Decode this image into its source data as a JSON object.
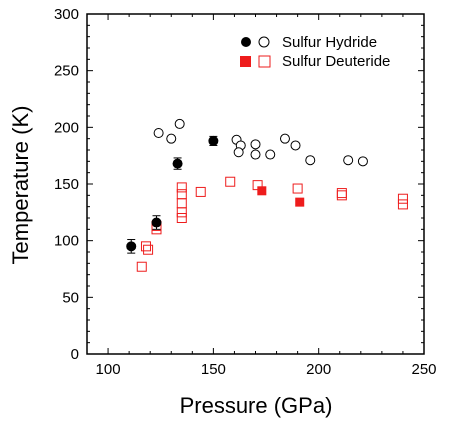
{
  "chart_data": {
    "type": "scatter",
    "xlabel": "Pressure (GPa)",
    "ylabel": "Temperature (K)",
    "xlim": [
      90,
      250
    ],
    "ylim": [
      0,
      300
    ],
    "x_ticks": [
      100,
      150,
      200,
      250
    ],
    "y_ticks": [
      0,
      50,
      100,
      150,
      200,
      250,
      300
    ],
    "x_tick_labels": [
      "100",
      "150",
      "200",
      "250"
    ],
    "y_tick_labels": [
      "0",
      "50",
      "100",
      "150",
      "200",
      "250",
      "300"
    ],
    "grid": false,
    "legend_position": "top-right",
    "series": [
      {
        "name": "Sulfur Hydride",
        "color": "#000000",
        "points_filled": [
          {
            "x": 111,
            "y": 95,
            "err": 6
          },
          {
            "x": 123,
            "y": 116,
            "err": 6
          },
          {
            "x": 133,
            "y": 168,
            "err": 5
          },
          {
            "x": 150,
            "y": 188,
            "err": 4
          }
        ],
        "points_open": [
          {
            "x": 124,
            "y": 195
          },
          {
            "x": 130,
            "y": 190
          },
          {
            "x": 134,
            "y": 203
          },
          {
            "x": 161,
            "y": 189
          },
          {
            "x": 163,
            "y": 184
          },
          {
            "x": 162,
            "y": 178
          },
          {
            "x": 170,
            "y": 185
          },
          {
            "x": 170,
            "y": 176
          },
          {
            "x": 177,
            "y": 176
          },
          {
            "x": 184,
            "y": 190
          },
          {
            "x": 189,
            "y": 184
          },
          {
            "x": 196,
            "y": 171
          },
          {
            "x": 214,
            "y": 171
          },
          {
            "x": 221,
            "y": 170
          }
        ]
      },
      {
        "name": "Sulfur Deuteride",
        "color": "#ee1c1c",
        "points_filled": [
          {
            "x": 173,
            "y": 144
          },
          {
            "x": 191,
            "y": 134
          }
        ],
        "points_open": [
          {
            "x": 116,
            "y": 77
          },
          {
            "x": 118,
            "y": 95
          },
          {
            "x": 119,
            "y": 92
          },
          {
            "x": 123,
            "y": 110
          },
          {
            "x": 123,
            "y": 113
          },
          {
            "x": 135,
            "y": 147
          },
          {
            "x": 135,
            "y": 141
          },
          {
            "x": 135,
            "y": 133
          },
          {
            "x": 135,
            "y": 125
          },
          {
            "x": 135,
            "y": 120
          },
          {
            "x": 144,
            "y": 143
          },
          {
            "x": 158,
            "y": 152
          },
          {
            "x": 171,
            "y": 149
          },
          {
            "x": 190,
            "y": 146
          },
          {
            "x": 211,
            "y": 142
          },
          {
            "x": 211,
            "y": 140
          },
          {
            "x": 240,
            "y": 137
          },
          {
            "x": 240,
            "y": 132
          }
        ]
      }
    ]
  }
}
